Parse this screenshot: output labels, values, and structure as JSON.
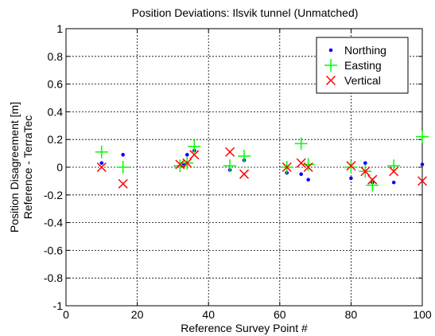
{
  "chart_data": {
    "type": "scatter",
    "title": "Position Deviations: Ilsvik tunnel (Unmatched)",
    "xlabel": "Reference Survey Point #",
    "ylabel": [
      "Position Disagreement [m]",
      "Reference - TerraTec"
    ],
    "xlim": [
      0,
      100
    ],
    "ylim": [
      -1,
      1
    ],
    "xticks": [
      0,
      20,
      40,
      60,
      80,
      100
    ],
    "yticks": [
      -1,
      -0.8,
      -0.6,
      -0.4,
      -0.2,
      0,
      0.2,
      0.4,
      0.6,
      0.8,
      1
    ],
    "grid": true,
    "legend_position": "top-right",
    "series": [
      {
        "name": "Northing",
        "marker": "dot",
        "color": "#0000ff",
        "points": [
          [
            10,
            0.03
          ],
          [
            16,
            0.09
          ],
          [
            33,
            0.02
          ],
          [
            34,
            0.09
          ],
          [
            36,
            0.12
          ],
          [
            46,
            -0.02
          ],
          [
            50,
            0.05
          ],
          [
            62,
            -0.04
          ],
          [
            66,
            -0.05
          ],
          [
            68,
            -0.09
          ],
          [
            80,
            -0.08
          ],
          [
            84,
            0.03
          ],
          [
            86,
            -0.11
          ],
          [
            92,
            -0.11
          ],
          [
            100,
            0.02
          ]
        ]
      },
      {
        "name": "Easting",
        "marker": "plus",
        "color": "#00ff00",
        "points": [
          [
            10,
            0.11
          ],
          [
            16,
            0.0
          ],
          [
            32,
            0.01
          ],
          [
            34,
            0.03
          ],
          [
            36,
            0.15
          ],
          [
            46,
            0.01
          ],
          [
            50,
            0.08
          ],
          [
            62,
            0.0
          ],
          [
            66,
            0.17
          ],
          [
            68,
            0.02
          ],
          [
            80,
            0.0
          ],
          [
            84,
            -0.03
          ],
          [
            86,
            -0.13
          ],
          [
            92,
            0.01
          ],
          [
            100,
            0.22
          ]
        ]
      },
      {
        "name": "Vertical",
        "marker": "x",
        "color": "#ff0000",
        "points": [
          [
            10,
            0.0
          ],
          [
            16,
            -0.12
          ],
          [
            32,
            0.02
          ],
          [
            34,
            0.03
          ],
          [
            36,
            0.09
          ],
          [
            46,
            0.11
          ],
          [
            50,
            -0.05
          ],
          [
            62,
            0.0
          ],
          [
            66,
            0.03
          ],
          [
            68,
            0.0
          ],
          [
            80,
            0.01
          ],
          [
            84,
            -0.03
          ],
          [
            86,
            -0.09
          ],
          [
            92,
            -0.03
          ],
          [
            100,
            -0.1
          ]
        ]
      }
    ]
  }
}
